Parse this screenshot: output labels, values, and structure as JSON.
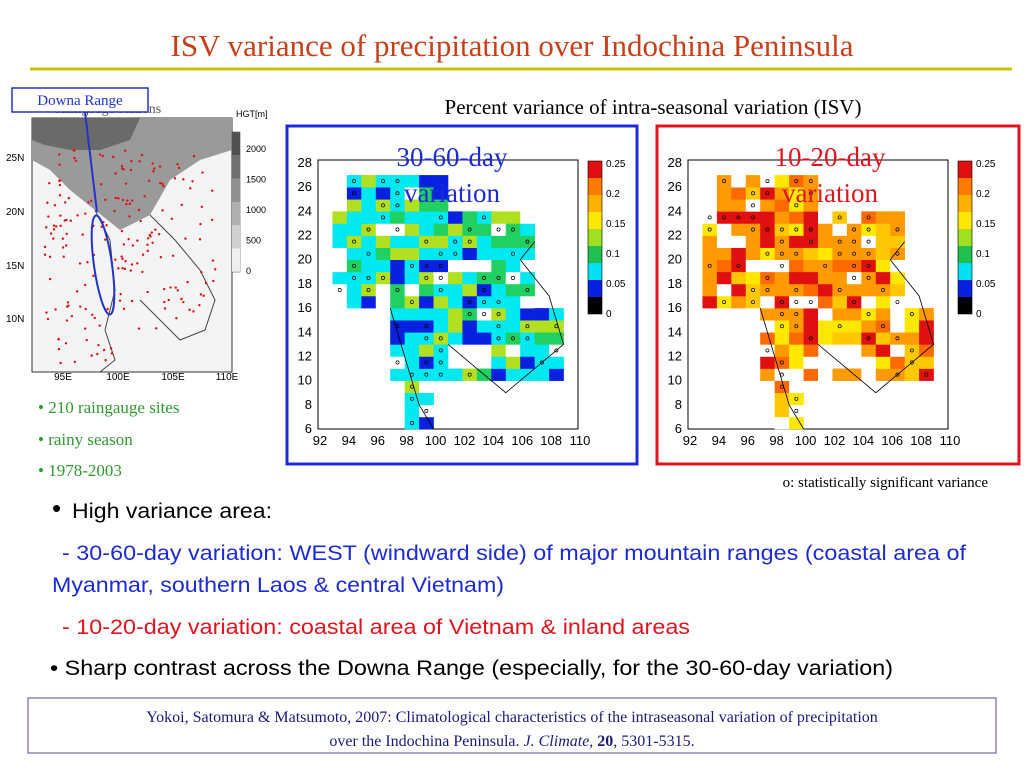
{
  "title": "ISV variance of precipitation over Indochina Peninsula",
  "inset_label": "Downa Range",
  "left_map": {
    "title": "Raingauge stations",
    "legend_title": "HGT[m]",
    "legend_labels": [
      "2000",
      "1500",
      "1000",
      "500",
      "0"
    ],
    "lat_labels": [
      "25N",
      "20N",
      "15N",
      "10N"
    ],
    "lon_labels": [
      "95E",
      "100E",
      "105E",
      "110E"
    ]
  },
  "subtitle": "Percent variance of intra-seasonal variation (ISV)",
  "panels": [
    {
      "title_lines": [
        "30-60-day",
        "variation"
      ],
      "y_labels": [
        "28",
        "26",
        "24",
        "22",
        "20",
        "18",
        "16",
        "14",
        "12",
        "10",
        "8",
        "6"
      ],
      "x_labels": [
        "92",
        "94",
        "96",
        "98",
        "100",
        "102",
        "104",
        "106",
        "108",
        "110"
      ],
      "colorbar_labels": [
        "0.25",
        "0.2",
        "0.15",
        "0.1",
        "0.05",
        "0"
      ]
    },
    {
      "title_lines": [
        "10-20-day",
        "variation"
      ],
      "y_labels": [
        "28",
        "26",
        "24",
        "22",
        "20",
        "18",
        "16",
        "14",
        "12",
        "10",
        "8",
        "6"
      ],
      "x_labels": [
        "92",
        "94",
        "96",
        "98",
        "100",
        "102",
        "104",
        "106",
        "108",
        "110"
      ],
      "colorbar_labels": [
        "0.25",
        "0.2",
        "0.15",
        "0.1",
        "0.05",
        "0"
      ]
    }
  ],
  "sites": [
    "• 210 raingauge sites",
    "• rainy season",
    "• 1978-2003"
  ],
  "note": "o: statistically significant variance",
  "bullets": {
    "heading": "High variance area:",
    "blue_lines": [
      "- 30-60-day variation: WEST (windward side) of major mountain ranges (coastal area of",
      "Myanmar, southern Laos & central Vietnam)"
    ],
    "red_line": "- 10-20-day variation: coastal area of Vietnam & inland areas",
    "black_line": "• Sharp contrast across the Downa Range (especially, for the 30-60-day variation)"
  },
  "reference": {
    "line1": "Yokoi, Satomura & Matsumoto, 2007: Climatological characteristics of the intraseasonal variation of precipitation",
    "line2": [
      "over the Indochina Peninsula. ",
      "J. Climate",
      ", ",
      "20",
      ", 5301-5315."
    ]
  }
}
